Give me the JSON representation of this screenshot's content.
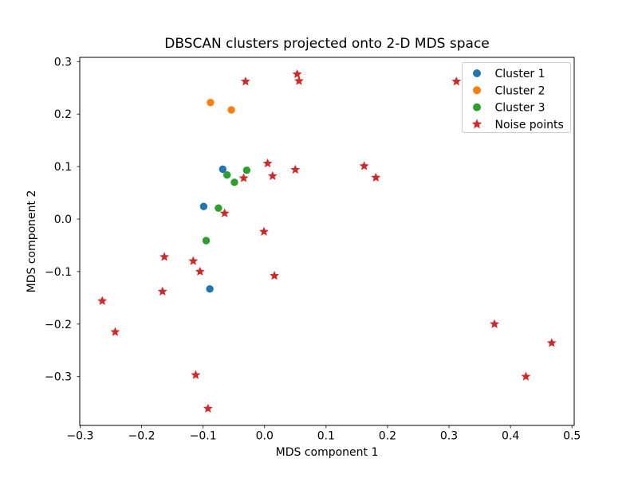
{
  "chart_data": {
    "type": "scatter",
    "title": "DBSCAN clusters projected onto 2-D MDS space",
    "xlabel": "MDS component 1",
    "ylabel": "MDS component 2",
    "xlim": [
      -0.3006,
      0.5036
    ],
    "ylim": [
      -0.393,
      0.308
    ],
    "x_ticks": [
      -0.3,
      -0.2,
      -0.1,
      0.0,
      0.1,
      0.2,
      0.3,
      0.4,
      0.5
    ],
    "x_tick_labels": [
      "−0.3",
      "−0.2",
      "−0.1",
      "0.0",
      "0.1",
      "0.2",
      "0.3",
      "0.4",
      "0.5"
    ],
    "y_ticks": [
      0.3,
      0.2,
      0.1,
      0.0,
      -0.1,
      -0.2,
      -0.3
    ],
    "y_tick_labels": [
      "0.3",
      "0.2",
      "0.1",
      "0.0",
      "−0.1",
      "−0.2",
      "−0.3"
    ],
    "grid": false,
    "legend_position": "upper right",
    "series": [
      {
        "name": "Cluster 1",
        "marker": "circle",
        "color": "#1f77b4",
        "points": [
          [
            -0.068,
            0.095
          ],
          [
            -0.099,
            0.024
          ],
          [
            -0.089,
            -0.133
          ]
        ]
      },
      {
        "name": "Cluster 2",
        "marker": "circle",
        "color": "#ff7f0e",
        "points": [
          [
            -0.088,
            0.222
          ],
          [
            -0.054,
            0.208
          ]
        ]
      },
      {
        "name": "Cluster 3",
        "marker": "circle",
        "color": "#2ca02c",
        "points": [
          [
            -0.061,
            0.084
          ],
          [
            -0.049,
            0.07
          ],
          [
            -0.029,
            0.093
          ],
          [
            -0.075,
            0.021
          ],
          [
            -0.095,
            -0.041
          ]
        ]
      },
      {
        "name": "Noise points",
        "marker": "star",
        "color": "#d62728",
        "points": [
          [
            -0.031,
            0.262
          ],
          [
            0.053,
            0.276
          ],
          [
            0.056,
            0.263
          ],
          [
            0.312,
            0.262
          ],
          [
            0.005,
            0.106
          ],
          [
            0.013,
            0.082
          ],
          [
            0.05,
            0.094
          ],
          [
            0.162,
            0.101
          ],
          [
            0.181,
            0.079
          ],
          [
            -0.034,
            0.078
          ],
          [
            -0.065,
            0.011
          ],
          [
            -0.001,
            -0.024
          ],
          [
            0.016,
            -0.108
          ],
          [
            -0.163,
            -0.072
          ],
          [
            -0.116,
            -0.08
          ],
          [
            -0.105,
            -0.1
          ],
          [
            -0.166,
            -0.138
          ],
          [
            -0.264,
            -0.156
          ],
          [
            -0.243,
            -0.215
          ],
          [
            -0.112,
            -0.297
          ],
          [
            -0.092,
            -0.361
          ],
          [
            0.374,
            -0.2
          ],
          [
            0.467,
            -0.236
          ],
          [
            0.425,
            -0.3
          ]
        ]
      }
    ],
    "colors": {
      "spine": "#000000",
      "tick": "#000000",
      "legend_border": "#cccccc",
      "legend_background": "#ffffff"
    }
  }
}
